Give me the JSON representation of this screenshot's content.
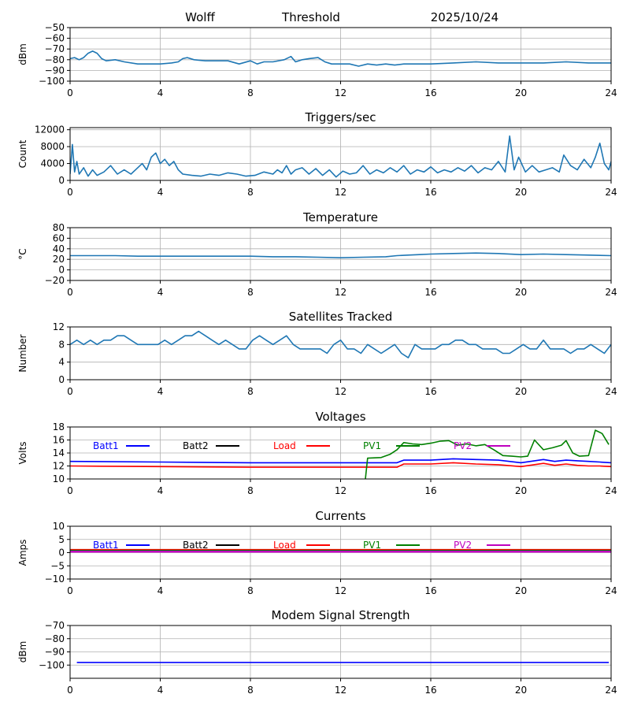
{
  "header": {
    "station": "Wolff",
    "mode": "Threshold",
    "date": "2025/10/24"
  },
  "colors": {
    "series": "#1f77b4",
    "grid": "#b0b0b0",
    "Batt1": "#0000ff",
    "Batt2": "#000000",
    "Load": "#ff0000",
    "PV1": "#008000",
    "PV2": "#bf00bf",
    "modem": "#0000ff"
  },
  "chart_data": [
    {
      "id": "threshold",
      "type": "line",
      "title": "",
      "ylabel": "dBm",
      "xlim": [
        0,
        24
      ],
      "ylim": [
        -100,
        -50
      ],
      "xticks": [
        "0",
        "4",
        "8",
        "12",
        "16",
        "20",
        "24"
      ],
      "yticks": [
        "−100",
        "−90",
        "−80",
        "−70",
        "−60",
        "−50"
      ],
      "series": [
        {
          "name": "Threshold",
          "x": [
            0,
            0.2,
            0.4,
            0.6,
            0.8,
            1.0,
            1.2,
            1.4,
            1.6,
            2.0,
            2.4,
            3.0,
            3.5,
            4.0,
            4.5,
            4.8,
            5.0,
            5.2,
            5.5,
            6.0,
            7.0,
            7.5,
            8.0,
            8.3,
            8.6,
            9.0,
            9.5,
            9.8,
            10.0,
            10.3,
            10.6,
            11.0,
            11.3,
            11.6,
            12.0,
            12.4,
            12.8,
            13.2,
            13.6,
            14.0,
            14.4,
            14.8,
            15.2,
            16.0,
            17.0,
            18.0,
            19.0,
            20.0,
            21.0,
            22.0,
            23.0,
            24.0
          ],
          "values": [
            -79,
            -78,
            -80,
            -78,
            -74,
            -72,
            -74,
            -79,
            -81,
            -80,
            -82,
            -84,
            -84,
            -84,
            -83,
            -82,
            -79,
            -78,
            -80,
            -81,
            -81,
            -84,
            -81,
            -84,
            -82,
            -82,
            -80,
            -77,
            -82,
            -80,
            -79,
            -78,
            -82,
            -84,
            -84,
            -84,
            -86,
            -84,
            -85,
            -84,
            -85,
            -84,
            -84,
            -84,
            -83,
            -82,
            -83,
            -83,
            -83,
            -82,
            -83,
            -83
          ]
        }
      ]
    },
    {
      "id": "triggers",
      "type": "line",
      "title": "Triggers/sec",
      "ylabel": "Count",
      "xlim": [
        0,
        24
      ],
      "ylim": [
        0,
        12500
      ],
      "xticks": [
        "0",
        "4",
        "8",
        "12",
        "16",
        "20",
        "24"
      ],
      "yticks": [
        "0",
        "4000",
        "8000",
        "12000"
      ],
      "series": [
        {
          "name": "Triggers",
          "x": [
            0,
            0.1,
            0.2,
            0.3,
            0.4,
            0.6,
            0.8,
            1.0,
            1.2,
            1.5,
            1.8,
            2.1,
            2.4,
            2.7,
            3.0,
            3.2,
            3.4,
            3.6,
            3.8,
            4.0,
            4.2,
            4.4,
            4.6,
            4.8,
            5.0,
            5.4,
            5.8,
            6.2,
            6.6,
            7.0,
            7.4,
            7.8,
            8.2,
            8.6,
            9.0,
            9.2,
            9.4,
            9.6,
            9.8,
            10.0,
            10.3,
            10.6,
            10.9,
            11.2,
            11.5,
            11.8,
            12.1,
            12.4,
            12.7,
            13.0,
            13.3,
            13.6,
            13.9,
            14.2,
            14.5,
            14.8,
            15.1,
            15.4,
            15.7,
            16.0,
            16.3,
            16.6,
            16.9,
            17.2,
            17.5,
            17.8,
            18.1,
            18.4,
            18.7,
            19.0,
            19.3,
            19.5,
            19.7,
            19.9,
            20.2,
            20.5,
            20.8,
            21.1,
            21.4,
            21.7,
            21.9,
            22.2,
            22.5,
            22.8,
            23.1,
            23.3,
            23.5,
            23.7,
            23.9,
            24.0
          ],
          "values": [
            1500,
            8500,
            2000,
            4500,
            1500,
            3000,
            1000,
            2500,
            1200,
            2000,
            3500,
            1500,
            2500,
            1500,
            3000,
            4000,
            2500,
            5500,
            6500,
            4000,
            5000,
            3500,
            4500,
            2500,
            1500,
            1200,
            1000,
            1500,
            1200,
            1800,
            1500,
            1000,
            1200,
            2000,
            1500,
            2500,
            1800,
            3500,
            1500,
            2500,
            3000,
            1500,
            2800,
            1200,
            2500,
            800,
            2200,
            1500,
            1800,
            3500,
            1500,
            2500,
            1800,
            3000,
            2000,
            3500,
            1500,
            2500,
            2000,
            3200,
            1800,
            2500,
            2000,
            3000,
            2200,
            3500,
            1800,
            3000,
            2500,
            4500,
            2000,
            10500,
            2500,
            5500,
            2000,
            3500,
            2000,
            2500,
            3000,
            2000,
            6000,
            3500,
            2500,
            5000,
            3000,
            5500,
            8800,
            4000,
            2500,
            4500
          ]
        }
      ]
    },
    {
      "id": "temperature",
      "type": "line",
      "title": "Temperature",
      "ylabel": "°C",
      "xlim": [
        0,
        24
      ],
      "ylim": [
        -20,
        80
      ],
      "xticks": [
        "0",
        "4",
        "8",
        "12",
        "16",
        "20",
        "24"
      ],
      "yticks": [
        "−20",
        "0",
        "20",
        "40",
        "60",
        "80"
      ],
      "series": [
        {
          "name": "Temperature",
          "x": [
            0,
            1,
            2,
            3,
            4,
            5,
            6,
            7,
            8,
            9,
            10,
            11,
            12,
            13,
            14,
            14.5,
            15,
            15.5,
            16,
            17,
            18,
            19,
            20,
            21,
            22,
            23,
            24
          ],
          "values": [
            27,
            27,
            27,
            26,
            26,
            26,
            26,
            26,
            26,
            25,
            25,
            24,
            23,
            24,
            25,
            27,
            28,
            29,
            30,
            31,
            32,
            31,
            29,
            30,
            29,
            28,
            27
          ]
        }
      ]
    },
    {
      "id": "satellites",
      "type": "line",
      "title": "Satellites Tracked",
      "ylabel": "Number",
      "xlim": [
        0,
        24
      ],
      "ylim": [
        0,
        12
      ],
      "xticks": [
        "0",
        "4",
        "8",
        "12",
        "16",
        "20",
        "24"
      ],
      "yticks": [
        "0",
        "4",
        "8",
        "12"
      ],
      "series": [
        {
          "name": "Satellites",
          "x": [
            0,
            0.3,
            0.6,
            0.9,
            1.2,
            1.5,
            1.8,
            2.1,
            2.4,
            2.7,
            3.0,
            3.3,
            3.6,
            3.9,
            4.2,
            4.5,
            4.8,
            5.1,
            5.4,
            5.7,
            6.0,
            6.3,
            6.6,
            6.9,
            7.2,
            7.5,
            7.8,
            8.1,
            8.4,
            8.7,
            9.0,
            9.3,
            9.6,
            9.9,
            10.2,
            10.5,
            10.8,
            11.1,
            11.4,
            11.7,
            12.0,
            12.3,
            12.6,
            12.9,
            13.2,
            13.5,
            13.8,
            14.1,
            14.4,
            14.7,
            15.0,
            15.3,
            15.6,
            15.9,
            16.2,
            16.5,
            16.8,
            17.1,
            17.4,
            17.7,
            18.0,
            18.3,
            18.6,
            18.9,
            19.2,
            19.5,
            19.8,
            20.1,
            20.4,
            20.7,
            21.0,
            21.3,
            21.6,
            21.9,
            22.2,
            22.5,
            22.8,
            23.1,
            23.4,
            23.7,
            24.0
          ],
          "values": [
            8,
            9,
            8,
            9,
            8,
            9,
            9,
            10,
            10,
            9,
            8,
            8,
            8,
            8,
            9,
            8,
            9,
            10,
            10,
            11,
            10,
            9,
            8,
            9,
            8,
            7,
            7,
            9,
            10,
            9,
            8,
            9,
            10,
            8,
            7,
            7,
            7,
            7,
            6,
            8,
            9,
            7,
            7,
            6,
            8,
            7,
            6,
            7,
            8,
            6,
            5,
            8,
            7,
            7,
            7,
            8,
            8,
            9,
            9,
            8,
            8,
            7,
            7,
            7,
            6,
            6,
            7,
            8,
            7,
            7,
            9,
            7,
            7,
            7,
            6,
            7,
            7,
            8,
            7,
            6,
            8
          ]
        }
      ]
    },
    {
      "id": "voltages",
      "type": "line",
      "title": "Voltages",
      "ylabel": "Volts",
      "xlim": [
        0,
        24
      ],
      "ylim": [
        10,
        18
      ],
      "xticks": [
        "0",
        "4",
        "8",
        "12",
        "16",
        "20",
        "24"
      ],
      "yticks": [
        "10",
        "12",
        "14",
        "16",
        "18"
      ],
      "series": [
        {
          "name": "Batt1",
          "x": [
            0,
            4,
            8,
            12,
            14.5,
            14.8,
            16,
            17,
            18,
            19,
            20,
            21,
            21.5,
            22,
            22.5,
            23,
            23.5,
            24
          ],
          "values": [
            12.7,
            12.6,
            12.5,
            12.5,
            12.5,
            12.9,
            12.9,
            13.1,
            13.0,
            12.9,
            12.5,
            13.0,
            12.7,
            12.9,
            12.8,
            12.7,
            12.6,
            12.5
          ]
        },
        {
          "name": "Batt2",
          "x": [],
          "values": []
        },
        {
          "name": "Load",
          "x": [
            0,
            4,
            8,
            12,
            14.5,
            14.8,
            16,
            17,
            18,
            19,
            20,
            21,
            21.5,
            22,
            22.5,
            23,
            23.5,
            24
          ],
          "values": [
            12.0,
            11.9,
            11.8,
            11.8,
            11.8,
            12.3,
            12.3,
            12.5,
            12.3,
            12.2,
            11.9,
            12.4,
            12.1,
            12.3,
            12.1,
            12.0,
            12.0,
            11.9
          ]
        },
        {
          "name": "PV1",
          "x": [
            13.1,
            13.2,
            13.8,
            14.2,
            14.5,
            14.8,
            15.2,
            15.6,
            16.0,
            16.4,
            16.8,
            17.2,
            17.6,
            18.0,
            18.4,
            18.8,
            19.2,
            19.6,
            20.0,
            20.3,
            20.6,
            21.0,
            21.4,
            21.8,
            22.0,
            22.3,
            22.6,
            23.0,
            23.3,
            23.6,
            23.9
          ],
          "values": [
            10.0,
            13.2,
            13.3,
            13.8,
            14.5,
            15.6,
            15.4,
            15.3,
            15.5,
            15.8,
            15.9,
            15.2,
            15.4,
            15.1,
            15.3,
            14.5,
            13.6,
            13.5,
            13.4,
            13.5,
            16.0,
            14.5,
            14.8,
            15.2,
            15.9,
            14.0,
            13.5,
            13.6,
            17.5,
            17.0,
            15.3
          ]
        },
        {
          "name": "PV2",
          "x": [],
          "values": []
        }
      ]
    },
    {
      "id": "currents",
      "type": "line",
      "title": "Currents",
      "ylabel": "Amps",
      "xlim": [
        0,
        24
      ],
      "ylim": [
        -10,
        10
      ],
      "xticks": [
        "0",
        "4",
        "8",
        "12",
        "16",
        "20",
        "24"
      ],
      "yticks": [
        "−10",
        "−5",
        "0",
        "5",
        "10"
      ],
      "series": [
        {
          "name": "Batt1",
          "x": [
            0,
            24
          ],
          "values": [
            0.5,
            0.5
          ]
        },
        {
          "name": "Batt2",
          "x": [],
          "values": []
        },
        {
          "name": "Load",
          "x": [
            0,
            24
          ],
          "values": [
            1.0,
            1.0
          ]
        },
        {
          "name": "PV1",
          "x": [
            0,
            24
          ],
          "values": [
            0.7,
            0.7
          ]
        },
        {
          "name": "PV2",
          "x": [
            0,
            24
          ],
          "values": [
            0.4,
            0.4
          ]
        }
      ]
    },
    {
      "id": "modem",
      "type": "line",
      "title": "Modem Signal Strength",
      "ylabel": "dBm",
      "xlim": [
        0,
        24
      ],
      "ylim": [
        -110,
        -70
      ],
      "xticks": [
        "0",
        "4",
        "8",
        "12",
        "16",
        "20",
        "24"
      ],
      "yticks": [
        "−100",
        "−90",
        "−80",
        "−70"
      ],
      "series": [
        {
          "name": "Modem",
          "x": [
            0.3,
            23.9
          ],
          "values": [
            -98,
            -98
          ]
        }
      ]
    }
  ]
}
